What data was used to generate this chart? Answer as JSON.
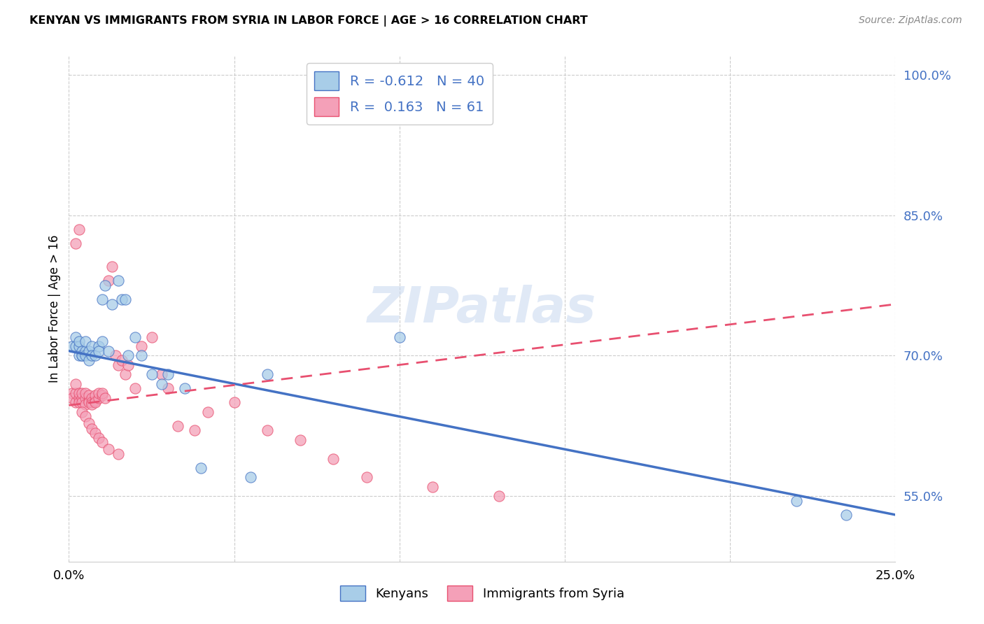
{
  "title": "KENYAN VS IMMIGRANTS FROM SYRIA IN LABOR FORCE | AGE > 16 CORRELATION CHART",
  "source": "Source: ZipAtlas.com",
  "ylabel": "In Labor Force | Age > 16",
  "x_min": 0.0,
  "x_max": 0.25,
  "y_min": 0.48,
  "y_max": 1.02,
  "y_ticks": [
    0.55,
    0.7,
    0.85,
    1.0
  ],
  "y_tick_labels": [
    "55.0%",
    "70.0%",
    "85.0%",
    "100.0%"
  ],
  "kenyan_R": -0.612,
  "kenyan_N": 40,
  "syria_R": 0.163,
  "syria_N": 61,
  "kenyan_color": "#A8CDE8",
  "syria_color": "#F4A0B8",
  "kenyan_line_color": "#4472C4",
  "syria_line_color": "#E85070",
  "watermark": "ZIPatlas",
  "kenyan_line_x0": 0.0,
  "kenyan_line_y0": 0.705,
  "kenyan_line_x1": 0.25,
  "kenyan_line_y1": 0.53,
  "syria_line_x0": 0.0,
  "syria_line_y0": 0.647,
  "syria_line_x1": 0.25,
  "syria_line_y1": 0.755,
  "kenyan_points_x": [
    0.001,
    0.002,
    0.002,
    0.003,
    0.003,
    0.003,
    0.004,
    0.004,
    0.004,
    0.005,
    0.005,
    0.005,
    0.006,
    0.006,
    0.007,
    0.007,
    0.008,
    0.009,
    0.009,
    0.01,
    0.01,
    0.011,
    0.012,
    0.013,
    0.015,
    0.016,
    0.017,
    0.018,
    0.02,
    0.022,
    0.025,
    0.028,
    0.03,
    0.035,
    0.04,
    0.055,
    0.06,
    0.1,
    0.22,
    0.235
  ],
  "kenyan_points_y": [
    0.71,
    0.72,
    0.71,
    0.7,
    0.71,
    0.715,
    0.7,
    0.705,
    0.7,
    0.705,
    0.715,
    0.7,
    0.705,
    0.695,
    0.71,
    0.7,
    0.7,
    0.71,
    0.705,
    0.76,
    0.715,
    0.775,
    0.705,
    0.755,
    0.78,
    0.76,
    0.76,
    0.7,
    0.72,
    0.7,
    0.68,
    0.67,
    0.68,
    0.665,
    0.58,
    0.57,
    0.68,
    0.72,
    0.545,
    0.53
  ],
  "syria_points_x": [
    0.001,
    0.001,
    0.002,
    0.002,
    0.002,
    0.003,
    0.003,
    0.003,
    0.004,
    0.004,
    0.004,
    0.005,
    0.005,
    0.005,
    0.006,
    0.006,
    0.006,
    0.007,
    0.007,
    0.007,
    0.008,
    0.008,
    0.008,
    0.009,
    0.009,
    0.01,
    0.01,
    0.011,
    0.012,
    0.013,
    0.014,
    0.015,
    0.016,
    0.017,
    0.018,
    0.02,
    0.022,
    0.025,
    0.028,
    0.03,
    0.033,
    0.038,
    0.042,
    0.05,
    0.06,
    0.07,
    0.08,
    0.09,
    0.11,
    0.13,
    0.002,
    0.003,
    0.004,
    0.005,
    0.006,
    0.007,
    0.008,
    0.009,
    0.01,
    0.012,
    0.015
  ],
  "syria_points_y": [
    0.66,
    0.655,
    0.65,
    0.66,
    0.67,
    0.655,
    0.65,
    0.66,
    0.655,
    0.65,
    0.66,
    0.655,
    0.648,
    0.66,
    0.652,
    0.658,
    0.65,
    0.655,
    0.65,
    0.648,
    0.652,
    0.658,
    0.65,
    0.655,
    0.66,
    0.658,
    0.66,
    0.655,
    0.78,
    0.795,
    0.7,
    0.69,
    0.695,
    0.68,
    0.69,
    0.665,
    0.71,
    0.72,
    0.68,
    0.665,
    0.625,
    0.62,
    0.64,
    0.65,
    0.62,
    0.61,
    0.59,
    0.57,
    0.56,
    0.55,
    0.82,
    0.835,
    0.64,
    0.635,
    0.628,
    0.622,
    0.617,
    0.612,
    0.608,
    0.6,
    0.595
  ]
}
